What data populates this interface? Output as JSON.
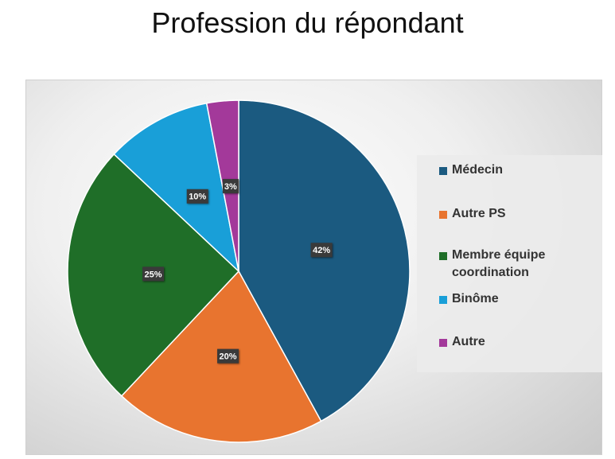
{
  "chart_data": {
    "type": "pie",
    "title": "Profession du répondant",
    "categories": [
      "Médecin",
      "Autre PS",
      "Membre équipe coordination",
      "Binôme",
      "Autre"
    ],
    "values": [
      42,
      20,
      25,
      10,
      3
    ],
    "value_labels": [
      "42%",
      "20%",
      "25%",
      "10%",
      "3%"
    ],
    "colors": [
      "#1b5a80",
      "#e8742f",
      "#1f6e28",
      "#199fd8",
      "#a3399a"
    ],
    "legend": "right"
  }
}
